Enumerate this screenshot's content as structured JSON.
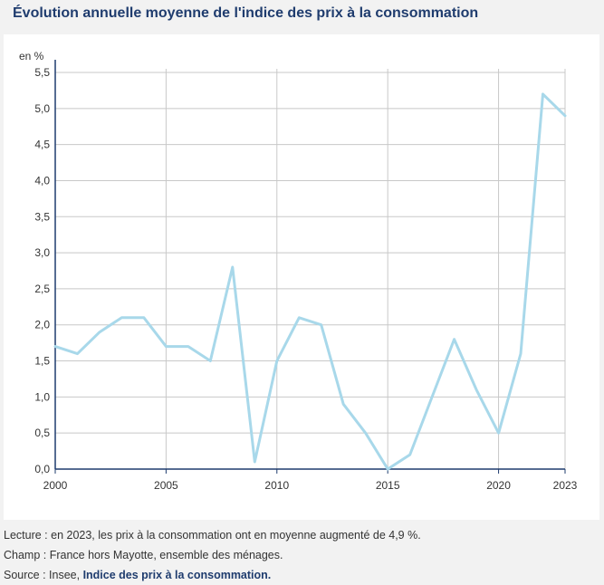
{
  "page": {
    "title": "Évolution annuelle moyenne de l'indice des prix à la consommation"
  },
  "chart_data": {
    "type": "line",
    "ylabel": "en %",
    "xlim": [
      2000,
      2023
    ],
    "ylim": [
      0,
      5.5
    ],
    "x_ticks": [
      "2000",
      "2005",
      "2010",
      "2015",
      "2020",
      "2023"
    ],
    "y_ticks": [
      "0,0",
      "0,5",
      "1,0",
      "1,5",
      "2,0",
      "2,5",
      "3,0",
      "3,5",
      "4,0",
      "4,5",
      "5,0",
      "5,5"
    ],
    "grid": true,
    "series": [
      {
        "color": "#a8d8ea",
        "x": [
          2000,
          2001,
          2002,
          2003,
          2004,
          2005,
          2006,
          2007,
          2008,
          2009,
          2010,
          2011,
          2012,
          2013,
          2014,
          2015,
          2016,
          2017,
          2018,
          2019,
          2020,
          2021,
          2022,
          2023
        ],
        "values": [
          1.7,
          1.6,
          1.9,
          2.1,
          2.1,
          1.7,
          1.7,
          1.5,
          2.8,
          0.1,
          1.5,
          2.1,
          2.0,
          0.9,
          0.5,
          0.0,
          0.2,
          1.0,
          1.8,
          1.1,
          0.5,
          1.6,
          5.2,
          4.9
        ]
      }
    ]
  },
  "notes": {
    "lecture": "Lecture : en 2023, les prix à la consommation ont en moyenne augmenté de 4,9 %.",
    "champ": "Champ : France hors Mayotte, ensemble des ménages.",
    "source_prefix": "Source : Insee, ",
    "source_link": "Indice des prix à la consommation."
  },
  "colors": {
    "title": "#1f3c6e",
    "axis": "#1f3c6e",
    "grid": "#c8c8c8",
    "line": "#a8d8ea"
  }
}
